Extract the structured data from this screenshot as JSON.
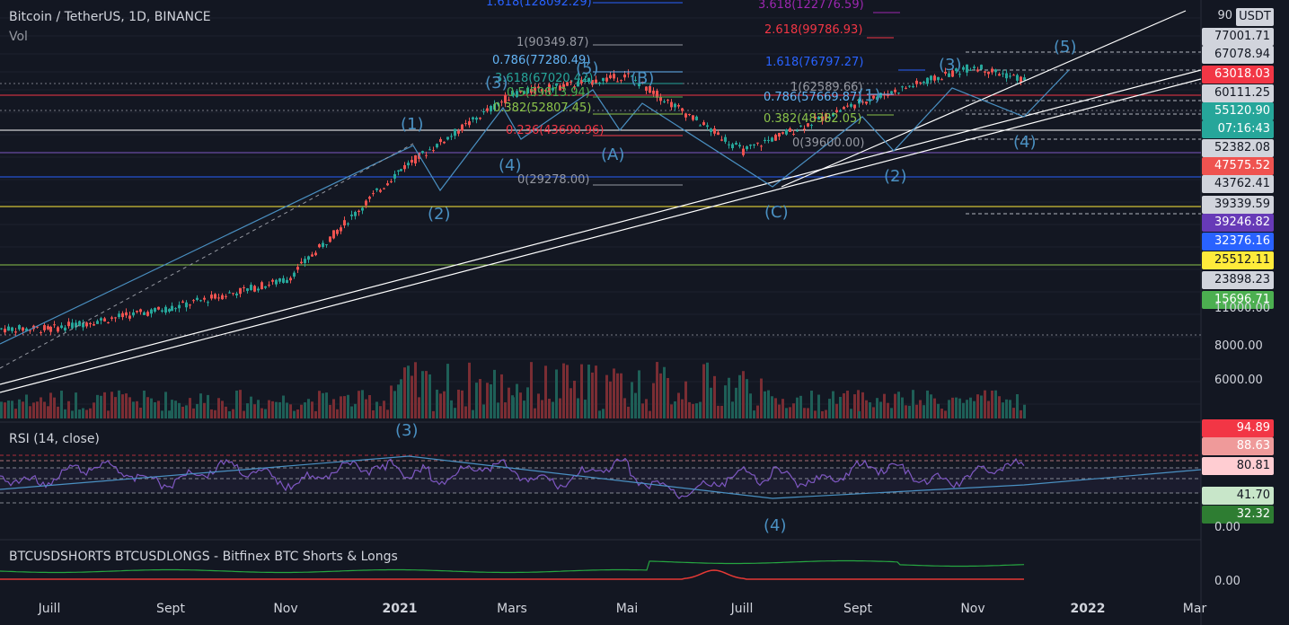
{
  "header": {
    "symbol": "Bitcoin / TetherUS, 1D, BINANCE",
    "vol": "Vol",
    "rsi_title": "RSI (14, close)",
    "shorts_title": "BTCUSDSHORTS BTCUSDLONGS - Bitfinex BTC Shorts & Longs"
  },
  "currency_badge": "USDT",
  "chart_data": {
    "type": "candlestick",
    "interval": "1D",
    "exchange": "BINANCE",
    "x_ticks": [
      "Juill",
      "Sept",
      "Nov",
      "2021",
      "Mars",
      "Mai",
      "Juill",
      "Sept",
      "Nov",
      "2022",
      "Mar"
    ],
    "y_scale": "log",
    "close_path": [
      [
        "Juill",
        9100
      ],
      [
        "Sept",
        10600
      ],
      [
        "Nov",
        13000
      ],
      [
        "2021",
        29000
      ],
      [
        "Mars",
        50000
      ],
      [
        "Mai",
        57000
      ],
      [
        "Juill",
        33000
      ],
      [
        "Sept",
        47000
      ],
      [
        "Nov",
        61000
      ]
    ],
    "last_price": "55120.90",
    "countdown": "07:16:43",
    "price_levels": [
      {
        "value": "90",
        "color": "#2a2e39"
      },
      {
        "value": "77001.71",
        "color": "#2a2e39"
      },
      {
        "value": "67078.94",
        "color": "#2a2e39"
      },
      {
        "value": "63018.03",
        "color": "#f23645"
      },
      {
        "value": "60111.25",
        "color": "#2a2e39"
      },
      {
        "value": "55120.90",
        "color": "#26a69a"
      },
      {
        "value": "52382.08",
        "color": "#2a2e39"
      },
      {
        "value": "47575.52",
        "color": "#ef5350"
      },
      {
        "value": "43762.41",
        "color": "#2a2e39"
      },
      {
        "value": "39339.59",
        "color": "#2a2e39"
      },
      {
        "value": "39246.82",
        "color": "#673ab7"
      },
      {
        "value": "32376.16",
        "color": "#2962ff"
      },
      {
        "value": "25512.11",
        "color": "#ffeb3b"
      },
      {
        "value": "23898.23",
        "color": "#2a2e39"
      },
      {
        "value": "15696.71",
        "color": "#4caf50"
      }
    ],
    "price_axis_ticks": [
      "11000.00",
      "8000.00",
      "6000.00"
    ],
    "fib_labels": [
      {
        "text": "1.618(128092.29)",
        "color": "#2962ff"
      },
      {
        "text": "3.618(122776.59)",
        "color": "#9c27b0"
      },
      {
        "text": "2.618(99786.93)",
        "color": "#f23645"
      },
      {
        "text": "1(90349.87)",
        "color": "#9598a1"
      },
      {
        "text": "0.786(77280.49)",
        "color": "#64b5f6"
      },
      {
        "text": "1.618(76797.27)",
        "color": "#2962ff"
      },
      {
        "text": "3.618(67020.42)",
        "color": "#26a69a"
      },
      {
        "text": "0.5(59813.94)",
        "color": "#4caf50"
      },
      {
        "text": "0.382(52807.45)",
        "color": "#8bc34a"
      },
      {
        "text": "0.236(43690.96)",
        "color": "#f23645"
      },
      {
        "text": "0(29278.00)",
        "color": "#9598a1"
      },
      {
        "text": "1(62589.66)",
        "color": "#9598a1"
      },
      {
        "text": "0.786(57669.87)",
        "color": "#64b5f6"
      },
      {
        "text": "0.382(48382.05)",
        "color": "#8bc34a"
      },
      {
        "text": "0(39600.00)",
        "color": "#9598a1"
      }
    ],
    "wave_labels": [
      "(1)",
      "(2)",
      "(3)",
      "(4)",
      "(5)",
      "(A)",
      "(B)",
      "(C)",
      "(1)",
      "(2)",
      "(3)",
      "(4)",
      "(5)"
    ],
    "rsi": {
      "levels": [
        "94.89",
        "88.63",
        "80.81",
        "41.70",
        "32.32"
      ],
      "axis_ticks": [
        "0.00"
      ],
      "wave_labels": [
        "(3)",
        "(4)"
      ]
    },
    "shorts_longs": {
      "axis_ticks": [
        "0.00"
      ]
    }
  }
}
